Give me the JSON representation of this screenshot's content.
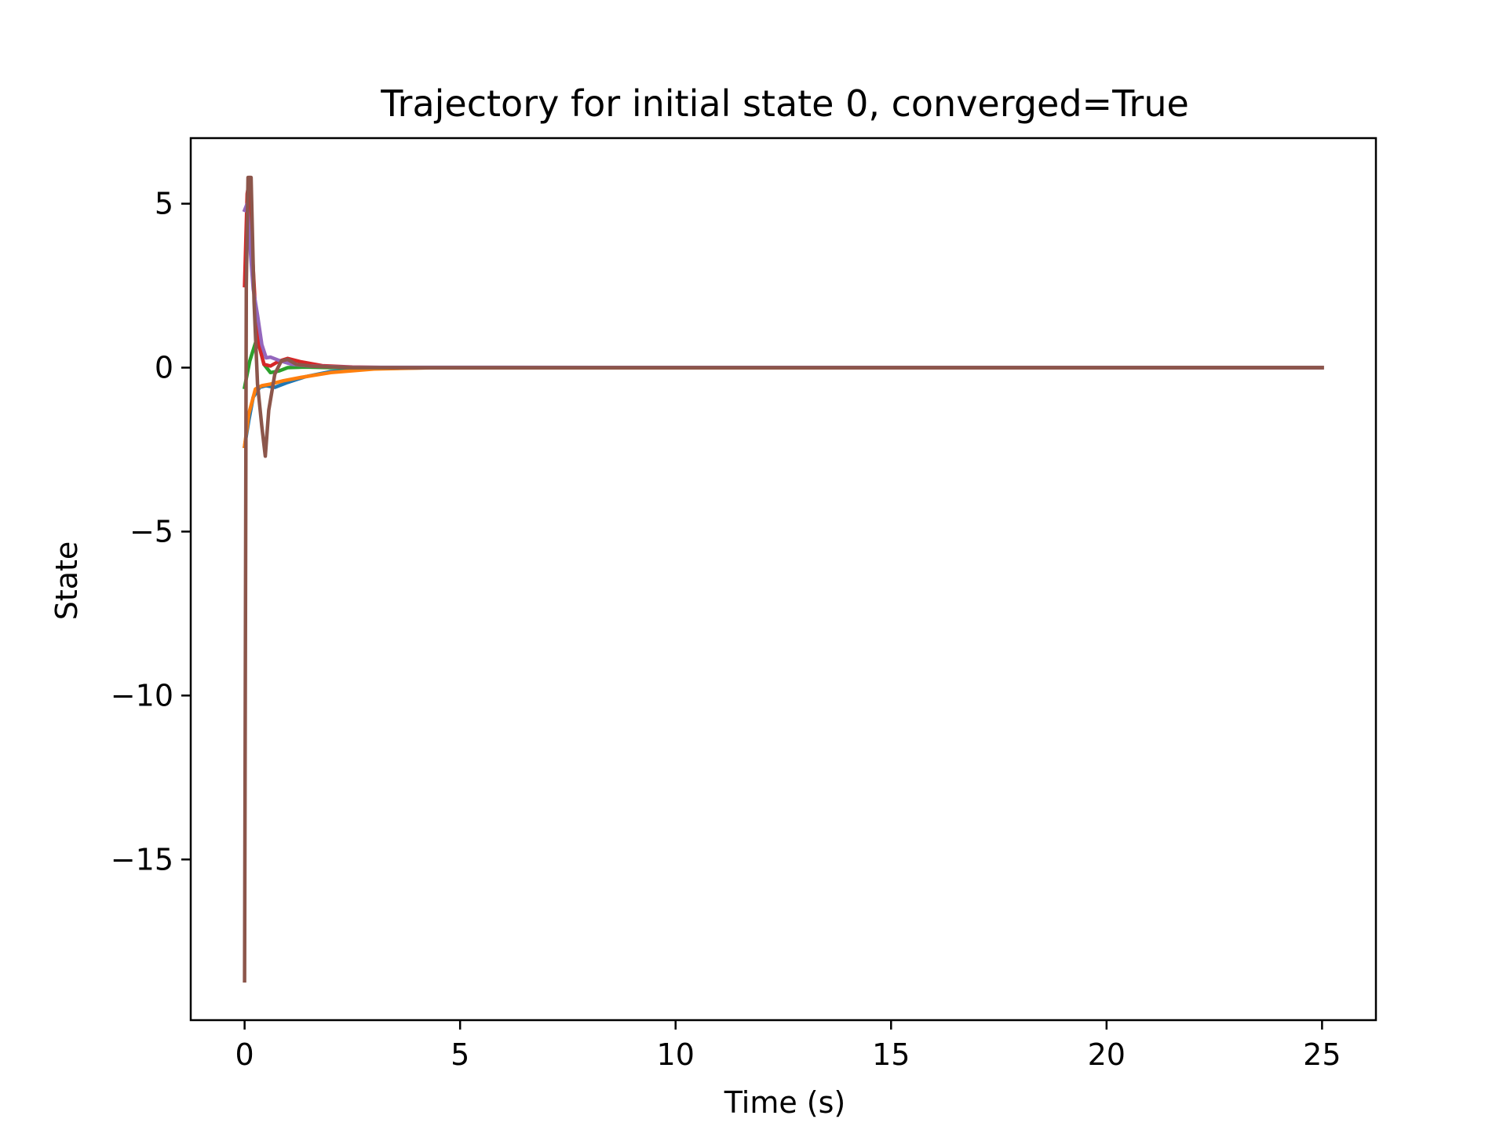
{
  "chart_data": {
    "type": "line",
    "title": "Trajectory for initial state 0, converged=True",
    "xlabel": "Time (s)",
    "ylabel": "State",
    "xlim": [
      -1.25,
      26.25
    ],
    "ylim": [
      -19.9,
      7.0
    ],
    "xticks": [
      0,
      5,
      10,
      15,
      20,
      25
    ],
    "yticks": [
      5,
      0,
      -5,
      -10,
      -15
    ],
    "xtick_labels": [
      "0",
      "5",
      "10",
      "15",
      "20",
      "25"
    ],
    "ytick_labels": [
      "5",
      "0",
      "−5",
      "−10",
      "−15"
    ],
    "grid": false,
    "legend": "none",
    "series": [
      {
        "color": "#1f77b4",
        "points": [
          [
            0,
            -2.4
          ],
          [
            0.1,
            -1.6
          ],
          [
            0.2,
            -0.9
          ],
          [
            0.35,
            -0.6
          ],
          [
            0.5,
            -0.55
          ],
          [
            0.7,
            -0.6
          ],
          [
            1.0,
            -0.45
          ],
          [
            1.4,
            -0.28
          ],
          [
            2.0,
            -0.12
          ],
          [
            3.0,
            -0.03
          ],
          [
            4.5,
            0
          ],
          [
            25,
            0
          ]
        ]
      },
      {
        "color": "#ff7f0e",
        "points": [
          [
            0,
            -2.4
          ],
          [
            0.1,
            -1.4
          ],
          [
            0.25,
            -0.65
          ],
          [
            0.4,
            -0.55
          ],
          [
            0.6,
            -0.5
          ],
          [
            0.9,
            -0.4
          ],
          [
            1.3,
            -0.3
          ],
          [
            2.0,
            -0.15
          ],
          [
            3.0,
            -0.04
          ],
          [
            4.5,
            0
          ],
          [
            25,
            0
          ]
        ]
      },
      {
        "color": "#2ca02c",
        "points": [
          [
            0,
            -0.6
          ],
          [
            0.12,
            0.2
          ],
          [
            0.25,
            0.75
          ],
          [
            0.35,
            0.6
          ],
          [
            0.45,
            0.1
          ],
          [
            0.6,
            -0.15
          ],
          [
            0.8,
            -0.1
          ],
          [
            1.0,
            0.0
          ],
          [
            1.4,
            0.02
          ],
          [
            2.0,
            0
          ],
          [
            25,
            0
          ]
        ]
      },
      {
        "color": "#d62728",
        "points": [
          [
            0,
            2.5
          ],
          [
            0.06,
            5.3
          ],
          [
            0.12,
            5.8
          ],
          [
            0.18,
            3.5
          ],
          [
            0.25,
            1.8
          ],
          [
            0.35,
            0.6
          ],
          [
            0.45,
            0.1
          ],
          [
            0.6,
            0.05
          ],
          [
            0.8,
            0.2
          ],
          [
            1.0,
            0.28
          ],
          [
            1.3,
            0.18
          ],
          [
            1.8,
            0.06
          ],
          [
            2.5,
            0.02
          ],
          [
            3.5,
            0
          ],
          [
            25,
            0
          ]
        ]
      },
      {
        "color": "#9467bd",
        "points": [
          [
            0,
            4.8
          ],
          [
            0.06,
            5.0
          ],
          [
            0.12,
            3.8
          ],
          [
            0.2,
            2.4
          ],
          [
            0.3,
            1.6
          ],
          [
            0.4,
            0.7
          ],
          [
            0.5,
            0.3
          ],
          [
            0.6,
            0.32
          ],
          [
            0.8,
            0.22
          ],
          [
            1.1,
            0.1
          ],
          [
            1.5,
            0.05
          ],
          [
            2.5,
            0.01
          ],
          [
            25,
            0
          ]
        ]
      },
      {
        "color": "#8c564b",
        "points": [
          [
            0,
            -18.7
          ],
          [
            0.04,
            2.5
          ],
          [
            0.08,
            5.8
          ],
          [
            0.15,
            5.8
          ],
          [
            0.22,
            2.0
          ],
          [
            0.3,
            -0.5
          ],
          [
            0.4,
            -1.8
          ],
          [
            0.48,
            -2.7
          ],
          [
            0.56,
            -1.3
          ],
          [
            0.7,
            -0.2
          ],
          [
            0.85,
            0.2
          ],
          [
            1.0,
            0.25
          ],
          [
            1.2,
            0.1
          ],
          [
            1.6,
            0.04
          ],
          [
            2.5,
            0
          ],
          [
            25,
            0
          ]
        ]
      }
    ]
  }
}
